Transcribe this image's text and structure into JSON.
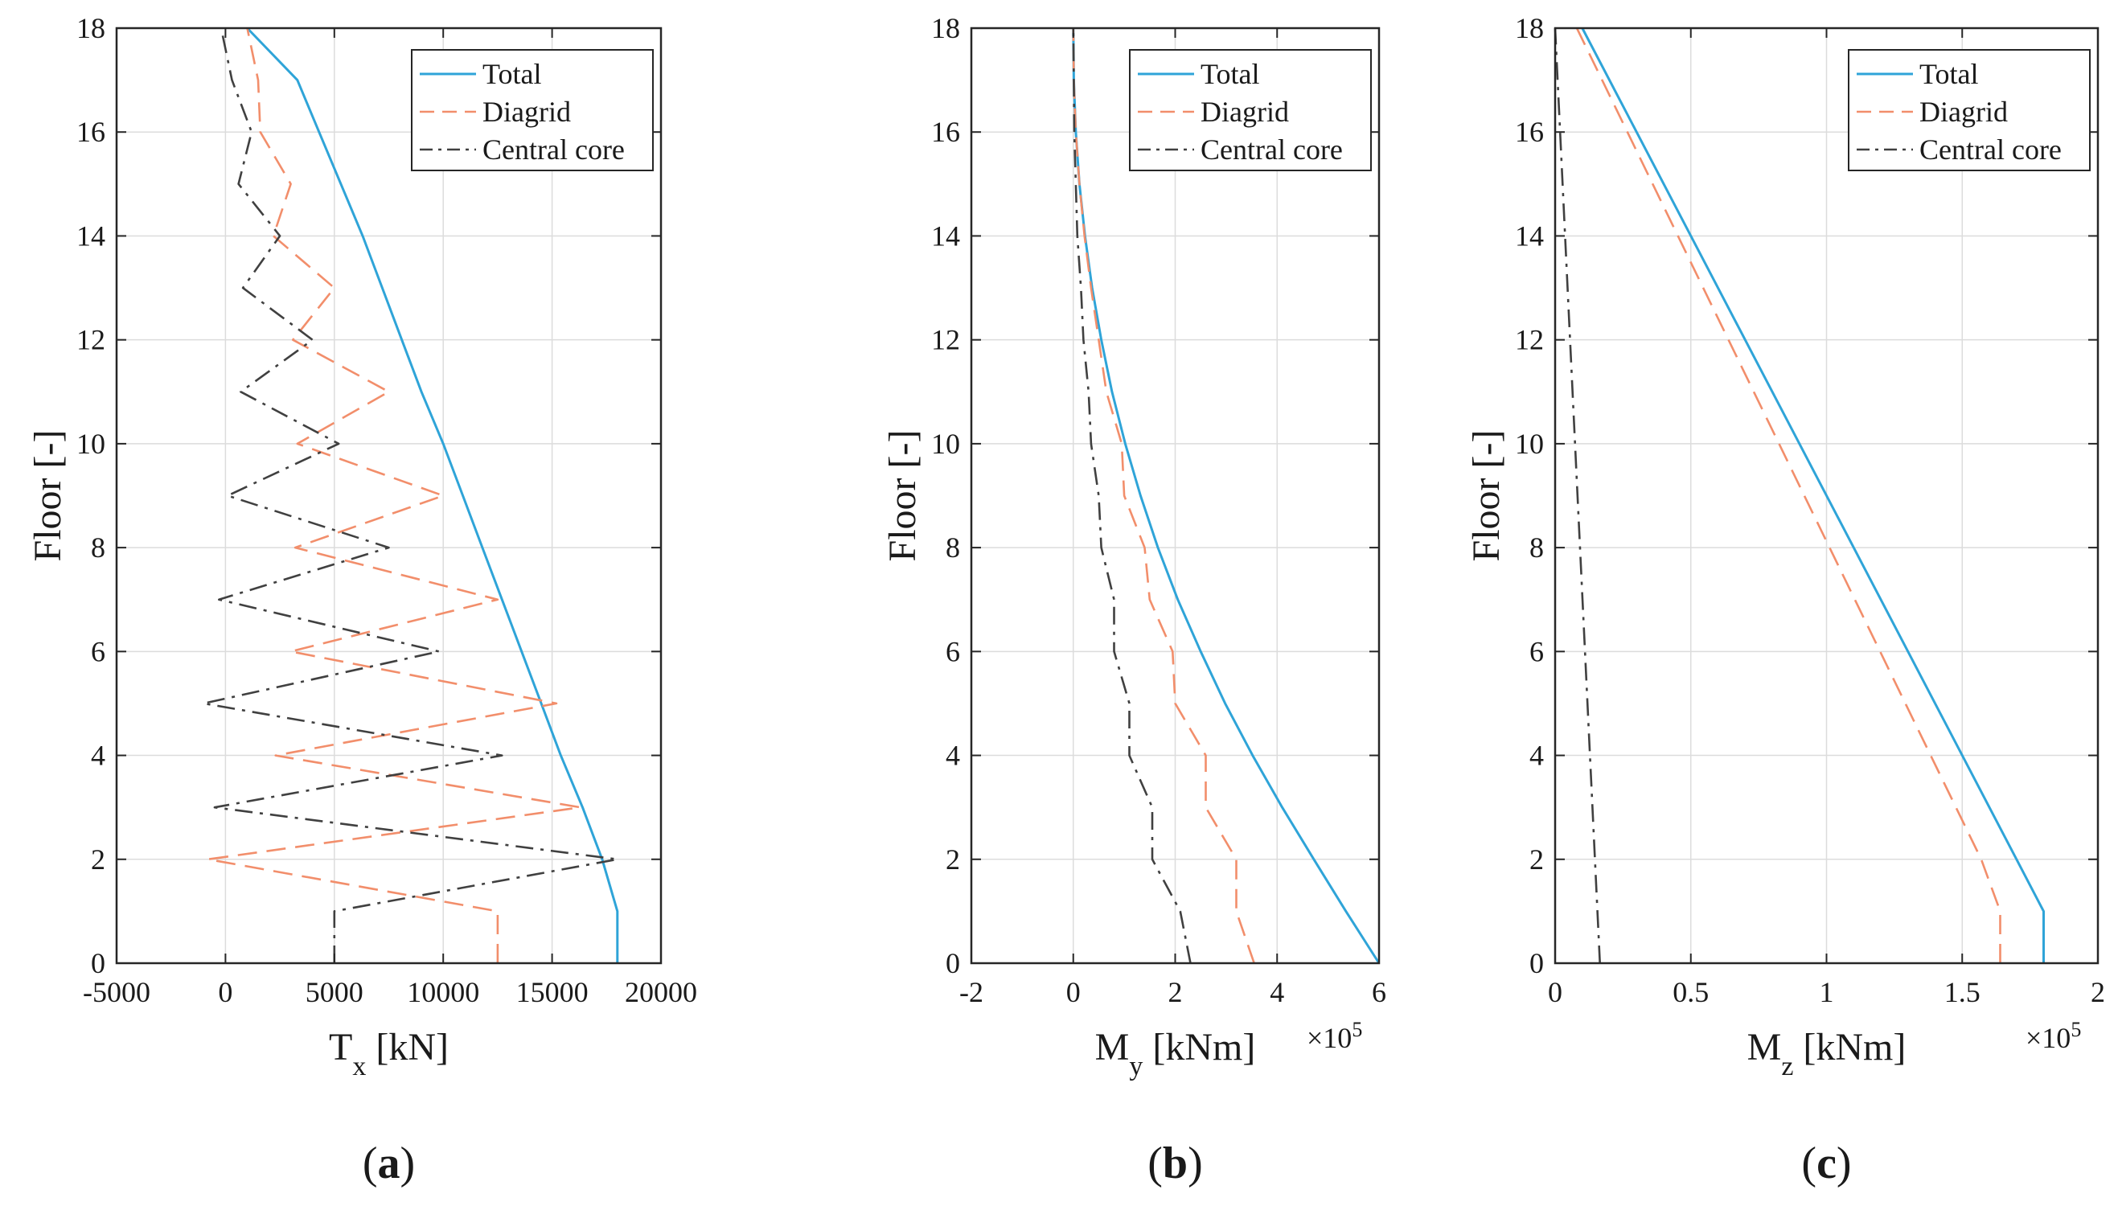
{
  "chart_data": [
    {
      "type": "line",
      "panel_label_open": "(",
      "panel_label_letter": "a",
      "panel_label_close": ")",
      "ylabel": "Floor [-]",
      "xlabel_main": "T",
      "xlabel_sub": "x",
      "xlabel_unit": " [kN]",
      "xlim": [
        -5000,
        20000
      ],
      "ylim": [
        0,
        18
      ],
      "xticks": [
        -5000,
        0,
        5000,
        10000,
        15000,
        20000
      ],
      "xtick_labels": [
        "-5000",
        "0",
        "5000",
        "10000",
        "15000",
        "20000"
      ],
      "yticks": [
        0,
        2,
        4,
        6,
        8,
        10,
        12,
        14,
        16,
        18
      ],
      "ytick_labels": [
        "0",
        "2",
        "4",
        "6",
        "8",
        "10",
        "12",
        "14",
        "16",
        "18"
      ],
      "legend_position": "top-right",
      "series": [
        {
          "name": "Total",
          "style": "solid",
          "color": "#2fa4d8",
          "points": [
            [
              18000,
              0
            ],
            [
              18000,
              1
            ],
            [
              17300,
              2
            ],
            [
              16400,
              3
            ],
            [
              15400,
              4
            ],
            [
              14500,
              5
            ],
            [
              13600,
              6
            ],
            [
              12700,
              7
            ],
            [
              11800,
              8
            ],
            [
              10900,
              9
            ],
            [
              10000,
              10
            ],
            [
              9000,
              11
            ],
            [
              8100,
              12
            ],
            [
              7200,
              13
            ],
            [
              6300,
              14
            ],
            [
              5300,
              15
            ],
            [
              4300,
              16
            ],
            [
              3300,
              17
            ],
            [
              1000,
              18
            ]
          ]
        },
        {
          "name": "Diagrid",
          "style": "dashed",
          "color": "#f28e6b",
          "points": [
            [
              12500,
              0
            ],
            [
              12500,
              1
            ],
            [
              -800,
              2
            ],
            [
              16300,
              3
            ],
            [
              2300,
              4
            ],
            [
              15200,
              5
            ],
            [
              3000,
              6
            ],
            [
              12500,
              7
            ],
            [
              3200,
              8
            ],
            [
              10000,
              9
            ],
            [
              3300,
              10
            ],
            [
              7500,
              11
            ],
            [
              3100,
              12
            ],
            [
              5000,
              13
            ],
            [
              2200,
              14
            ],
            [
              3000,
              15
            ],
            [
              1600,
              16
            ],
            [
              1500,
              17
            ],
            [
              1000,
              18
            ]
          ]
        },
        {
          "name": "Central core",
          "style": "dashdot",
          "color": "#404040",
          "points": [
            [
              5000,
              0
            ],
            [
              5000,
              1
            ],
            [
              18000,
              2
            ],
            [
              -500,
              3
            ],
            [
              12700,
              4
            ],
            [
              -1000,
              5
            ],
            [
              9800,
              6
            ],
            [
              -300,
              7
            ],
            [
              7500,
              8
            ],
            [
              100,
              9
            ],
            [
              5200,
              10
            ],
            [
              700,
              11
            ],
            [
              4000,
              12
            ],
            [
              800,
              13
            ],
            [
              2500,
              14
            ],
            [
              600,
              15
            ],
            [
              1200,
              16
            ],
            [
              300,
              17
            ],
            [
              -200,
              18
            ]
          ]
        }
      ]
    },
    {
      "type": "line",
      "panel_label_open": "(",
      "panel_label_letter": "b",
      "panel_label_close": ")",
      "ylabel": "Floor [-]",
      "xlabel_main": "M",
      "xlabel_sub": "y",
      "xlabel_unit": " [kNm]",
      "multiplier_base": "×10",
      "multiplier_exp": "5",
      "xlim": [
        -2,
        6
      ],
      "ylim": [
        0,
        18
      ],
      "xticks": [
        -2,
        0,
        2,
        4,
        6
      ],
      "xtick_labels": [
        "-2",
        "0",
        "2",
        "4",
        "6"
      ],
      "yticks": [
        0,
        2,
        4,
        6,
        8,
        10,
        12,
        14,
        16,
        18
      ],
      "ytick_labels": [
        "0",
        "2",
        "4",
        "6",
        "8",
        "10",
        "12",
        "14",
        "16",
        "18"
      ],
      "legend_position": "top-right",
      "series": [
        {
          "name": "Total",
          "style": "solid",
          "color": "#2fa4d8",
          "points": [
            [
              6.0,
              0
            ],
            [
              5.35,
              1
            ],
            [
              4.72,
              2
            ],
            [
              4.1,
              3
            ],
            [
              3.52,
              4
            ],
            [
              2.98,
              5
            ],
            [
              2.5,
              6
            ],
            [
              2.05,
              7
            ],
            [
              1.66,
              8
            ],
            [
              1.32,
              9
            ],
            [
              1.02,
              10
            ],
            [
              0.76,
              11
            ],
            [
              0.55,
              12
            ],
            [
              0.37,
              13
            ],
            [
              0.23,
              14
            ],
            [
              0.12,
              15
            ],
            [
              0.05,
              16
            ],
            [
              0.01,
              17
            ],
            [
              0.0,
              18
            ]
          ]
        },
        {
          "name": "Diagrid",
          "style": "dashed",
          "color": "#f28e6b",
          "points": [
            [
              3.55,
              0
            ],
            [
              3.2,
              1
            ],
            [
              3.2,
              2
            ],
            [
              2.6,
              3
            ],
            [
              2.6,
              4
            ],
            [
              2.0,
              5
            ],
            [
              1.95,
              6
            ],
            [
              1.5,
              7
            ],
            [
              1.4,
              8
            ],
            [
              1.0,
              9
            ],
            [
              0.95,
              10
            ],
            [
              0.65,
              11
            ],
            [
              0.5,
              12
            ],
            [
              0.35,
              13
            ],
            [
              0.22,
              14
            ],
            [
              0.12,
              15
            ],
            [
              0.05,
              16
            ],
            [
              0.01,
              17
            ],
            [
              0.0,
              18
            ]
          ]
        },
        {
          "name": "Central core",
          "style": "dashdot",
          "color": "#404040",
          "points": [
            [
              2.3,
              0
            ],
            [
              2.1,
              1
            ],
            [
              1.55,
              2
            ],
            [
              1.55,
              3
            ],
            [
              1.1,
              4
            ],
            [
              1.1,
              5
            ],
            [
              0.8,
              6
            ],
            [
              0.8,
              7
            ],
            [
              0.55,
              8
            ],
            [
              0.5,
              9
            ],
            [
              0.35,
              10
            ],
            [
              0.3,
              11
            ],
            [
              0.2,
              12
            ],
            [
              0.15,
              13
            ],
            [
              0.08,
              14
            ],
            [
              0.05,
              15
            ],
            [
              0.02,
              16
            ],
            [
              0.01,
              17
            ],
            [
              0.0,
              18
            ]
          ]
        }
      ]
    },
    {
      "type": "line",
      "panel_label_open": "(",
      "panel_label_letter": "c",
      "panel_label_close": ")",
      "ylabel": "Floor [-]",
      "xlabel_main": "M",
      "xlabel_sub": "z",
      "xlabel_unit": " [kNm]",
      "multiplier_base": "×10",
      "multiplier_exp": "5",
      "xlim": [
        0,
        2
      ],
      "ylim": [
        0,
        18
      ],
      "xticks": [
        0,
        0.5,
        1,
        1.5,
        2
      ],
      "xtick_labels": [
        "0",
        "0.5",
        "1",
        "1.5",
        "2"
      ],
      "yticks": [
        0,
        2,
        4,
        6,
        8,
        10,
        12,
        14,
        16,
        18
      ],
      "ytick_labels": [
        "0",
        "2",
        "4",
        "6",
        "8",
        "10",
        "12",
        "14",
        "16",
        "18"
      ],
      "legend_position": "top-right",
      "series": [
        {
          "name": "Total",
          "style": "solid",
          "color": "#2fa4d8",
          "points": [
            [
              1.8,
              0
            ],
            [
              1.8,
              1
            ],
            [
              1.7,
              2
            ],
            [
              0.1,
              18
            ]
          ]
        },
        {
          "name": "Diagrid",
          "style": "dashed",
          "color": "#f28e6b",
          "points": [
            [
              1.64,
              0
            ],
            [
              1.64,
              1
            ],
            [
              1.57,
              2
            ],
            [
              0.08,
              18
            ]
          ]
        },
        {
          "name": "Central core",
          "style": "dashdot",
          "color": "#404040",
          "points": [
            [
              0.165,
              0
            ],
            [
              0.0,
              18
            ]
          ]
        }
      ]
    }
  ]
}
